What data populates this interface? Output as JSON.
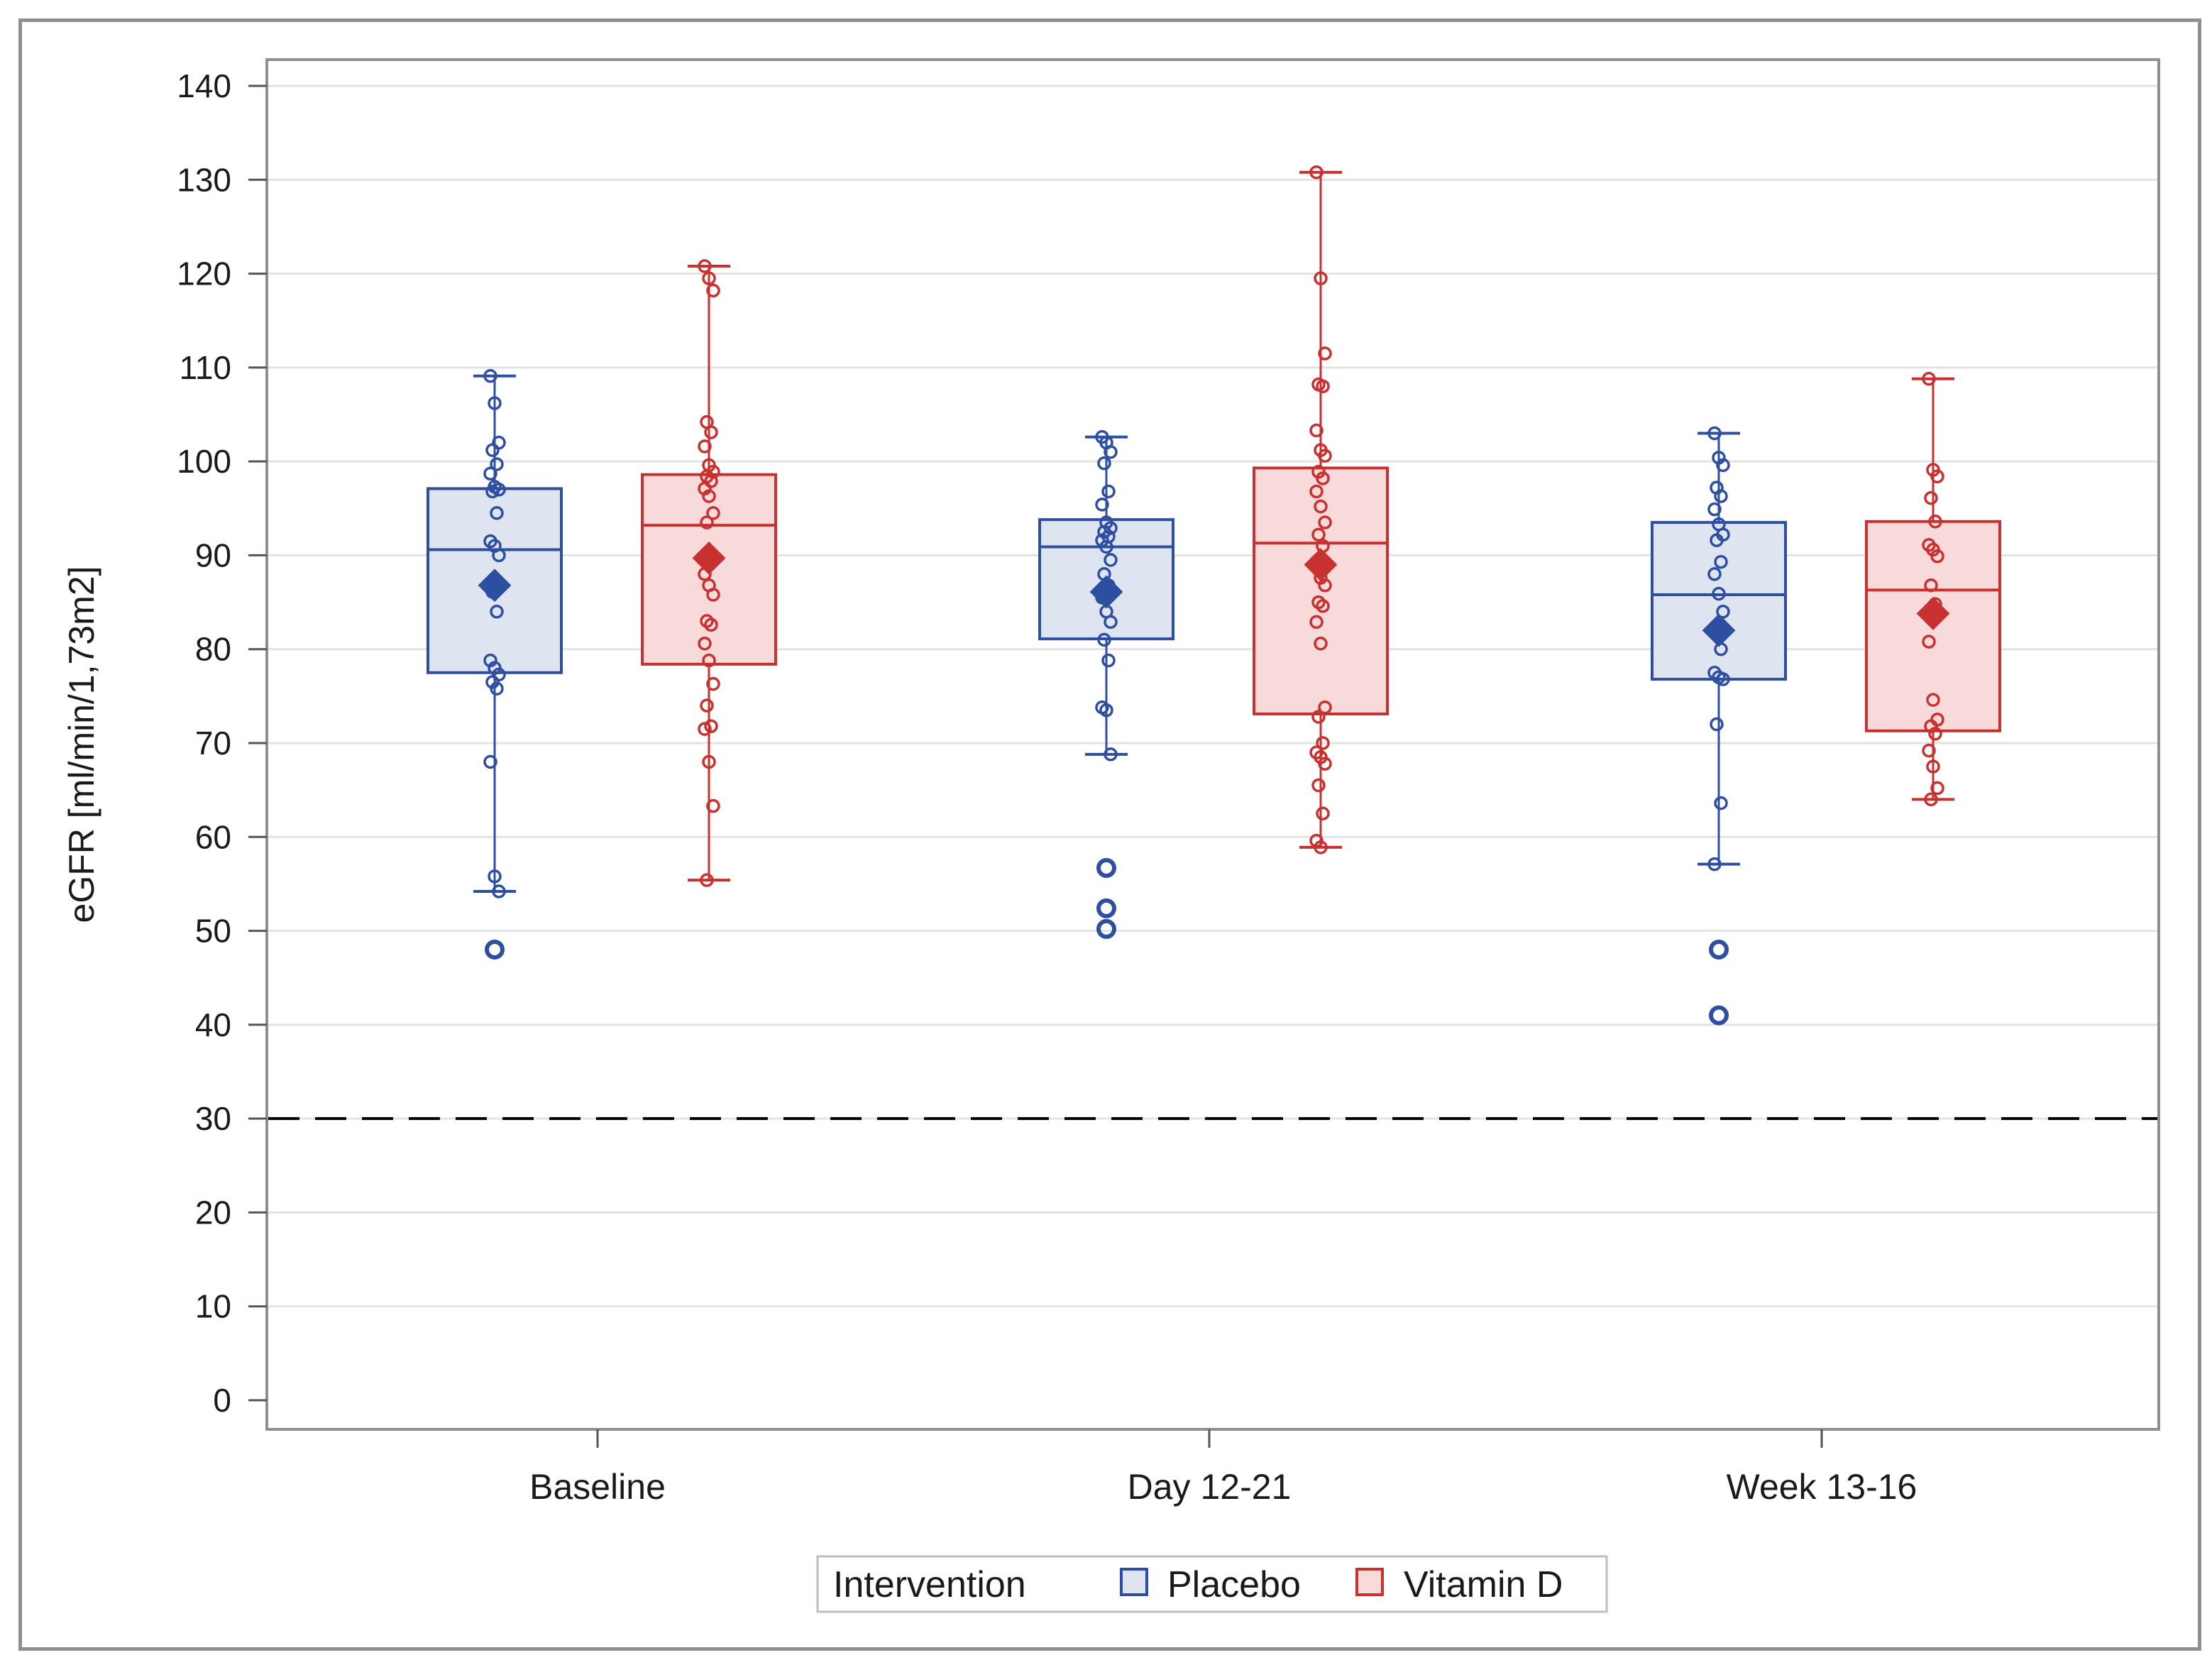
{
  "chart_data": {
    "type": "box",
    "title": "",
    "xlabel": "",
    "ylabel": "eGFR [ml/min/1,73m2]",
    "ylim": [
      0,
      140
    ],
    "yticks": [
      0,
      10,
      20,
      30,
      40,
      50,
      60,
      70,
      80,
      90,
      100,
      110,
      120,
      130,
      140
    ],
    "grid": true,
    "reference_line": {
      "y": 30,
      "style": "dashed",
      "color": "#000000"
    },
    "categories": [
      "Baseline",
      "Day 12-21",
      "Week 13-16"
    ],
    "legend": {
      "title": "Intervention",
      "position": "bottom",
      "entries": [
        {
          "name": "Placebo",
          "color": "#2e4fa1",
          "fill": "#dfe4f1"
        },
        {
          "name": "Vitamin D",
          "color": "#c7312f",
          "fill": "#f9dadb"
        }
      ]
    },
    "series": [
      {
        "name": "Placebo",
        "color": "#2e4fa1",
        "fill": "#dfe4f1",
        "boxes": [
          {
            "category": "Baseline",
            "whisker_low": 54.2,
            "q1": 77.5,
            "median": 90.6,
            "q3": 97.1,
            "whisker_high": 109.1,
            "mean": 86.8,
            "points": [
              109.1,
              106.2,
              102.0,
              101.2,
              99.7,
              98.7,
              97.3,
              97.0,
              96.8,
              94.5,
              91.5,
              91.0,
              90.0,
              86.1,
              84.0,
              78.8,
              78.0,
              77.3,
              76.5,
              75.8,
              68.0,
              55.8,
              54.2
            ],
            "outliers": [
              48.0
            ]
          },
          {
            "category": "Day 12-21",
            "whisker_low": 68.8,
            "q1": 81.1,
            "median": 90.9,
            "q3": 93.8,
            "whisker_high": 102.6,
            "mean": 86.1,
            "points": [
              102.6,
              102.0,
              101.0,
              99.8,
              96.8,
              95.4,
              93.5,
              92.9,
              92.5,
              92.0,
              91.6,
              90.9,
              89.5,
              88.0,
              86.8,
              85.5,
              84.0,
              82.9,
              81.0,
              78.8,
              73.8,
              73.5,
              68.8
            ],
            "outliers": [
              56.7,
              52.4,
              50.2
            ]
          },
          {
            "category": "Week 13-16",
            "whisker_low": 57.1,
            "q1": 76.8,
            "median": 85.8,
            "q3": 93.5,
            "whisker_high": 103.0,
            "mean": 82.0,
            "points": [
              103.0,
              100.4,
              99.6,
              97.2,
              96.3,
              94.9,
              93.3,
              92.2,
              91.6,
              89.3,
              88.0,
              85.9,
              84.0,
              82.0,
              80.0,
              77.5,
              77.0,
              76.8,
              72.0,
              63.6,
              57.1
            ],
            "outliers": [
              48.0,
              41.0
            ]
          }
        ]
      },
      {
        "name": "Vitamin D",
        "color": "#c7312f",
        "fill": "#f9dadb",
        "boxes": [
          {
            "category": "Baseline",
            "whisker_low": 55.4,
            "q1": 78.4,
            "median": 93.2,
            "q3": 98.6,
            "whisker_high": 120.8,
            "mean": 89.7,
            "points": [
              120.8,
              119.5,
              118.2,
              104.2,
              103.1,
              101.6,
              99.6,
              98.9,
              98.4,
              97.9,
              97.1,
              96.3,
              94.5,
              93.5,
              90.1,
              88.0,
              86.8,
              85.8,
              83.0,
              82.6,
              80.6,
              78.8,
              76.3,
              74.0,
              71.8,
              71.5,
              68.0,
              63.3,
              55.4
            ]
          },
          {
            "category": "Day 12-21",
            "whisker_low": 58.9,
            "q1": 73.1,
            "median": 91.3,
            "q3": 99.3,
            "whisker_high": 130.8,
            "mean": 89.0,
            "points": [
              130.8,
              119.5,
              111.5,
              108.2,
              108.0,
              103.3,
              101.2,
              100.6,
              98.9,
              98.2,
              96.8,
              95.2,
              93.5,
              92.2,
              91.0,
              89.3,
              87.6,
              86.8,
              85.0,
              84.6,
              82.9,
              80.6,
              73.8,
              72.8,
              70.0,
              69.0,
              68.5,
              67.8,
              65.5,
              62.5,
              59.6,
              58.9
            ]
          },
          {
            "category": "Week 13-16",
            "whisker_low": 64.0,
            "q1": 71.3,
            "median": 86.3,
            "q3": 93.6,
            "whisker_high": 108.8,
            "mean": 83.8,
            "points": [
              108.8,
              99.1,
              98.4,
              96.1,
              93.6,
              91.1,
              90.6,
              89.9,
              86.8,
              84.8,
              80.8,
              74.6,
              72.5,
              71.8,
              71.0,
              69.2,
              67.5,
              65.2,
              64.0
            ]
          }
        ]
      }
    ]
  }
}
